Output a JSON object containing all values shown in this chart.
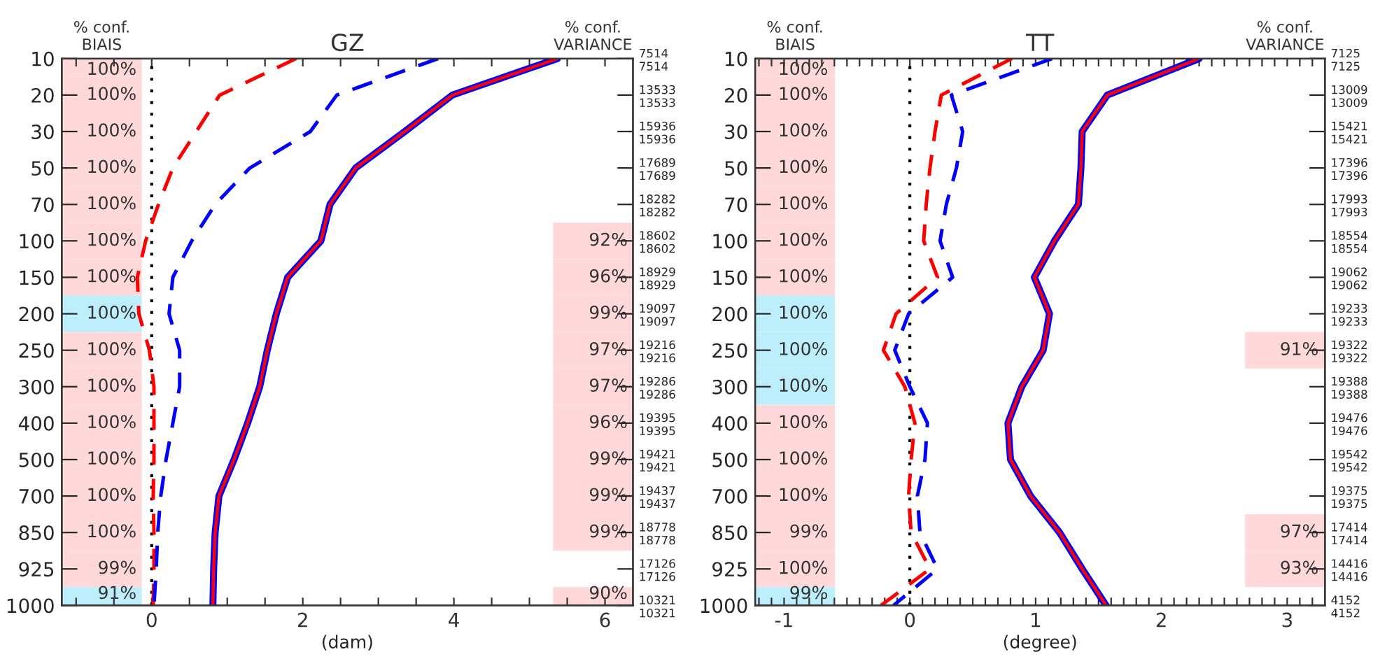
{
  "chart_data": [
    {
      "type": "line",
      "orientation": "horizontal",
      "title": "GZ",
      "xlabel": "(dam)",
      "categories": [
        "10",
        "20",
        "30",
        "50",
        "70",
        "100",
        "150",
        "200",
        "250",
        "300",
        "400",
        "500",
        "700",
        "850",
        "925",
        "1000"
      ],
      "y2_categories": [
        "7514\n7514",
        "13533\n13533",
        "15936\n15936",
        "17689\n17689",
        "18282\n18282",
        "18602\n18602",
        "18929\n18929",
        "19097\n19097",
        "19216\n19216",
        "19286\n19286",
        "19395\n19395",
        "19421\n19421",
        "19437\n19437",
        "18778\n18778",
        "17126\n17126",
        "10321\n10321"
      ],
      "series": [
        {
          "color": "#ff0000",
          "line_style": "dashed",
          "values": [
            1.91,
            0.9,
            0.59,
            0.28,
            0.09,
            -0.08,
            -0.19,
            -0.17,
            -0.03,
            0.03,
            0.03,
            0.03,
            0.02,
            0.03,
            0.03,
            0.02
          ]
        },
        {
          "color": "#0000ff",
          "line_style": "dashed",
          "values": [
            3.79,
            2.45,
            2.1,
            1.3,
            0.84,
            0.53,
            0.28,
            0.23,
            0.37,
            0.37,
            0.28,
            0.19,
            0.12,
            0.08,
            0.06,
            0.03
          ]
        },
        {
          "color": "#0000ff",
          "line_style": "solid",
          "values": [
            5.37,
            3.98,
            3.35,
            2.7,
            2.36,
            2.24,
            1.8,
            1.65,
            1.53,
            1.43,
            1.27,
            1.09,
            0.89,
            0.84,
            0.82,
            0.81
          ]
        },
        {
          "color": "#ff0000",
          "line_style": "solid",
          "values": [
            5.37,
            3.98,
            3.35,
            2.7,
            2.36,
            2.24,
            1.8,
            1.65,
            1.53,
            1.43,
            1.27,
            1.09,
            0.89,
            0.84,
            0.82,
            0.81
          ]
        }
      ],
      "xlim": [
        -1.19,
        6.37
      ],
      "xticks": [
        {
          "value": -1,
          "label": null
        },
        {
          "value": -0.5,
          "label": null
        },
        0,
        {
          "value": 0.5,
          "label": null
        },
        {
          "value": 1,
          "label": null
        },
        {
          "value": 1.5,
          "label": null
        },
        2,
        {
          "value": 2.5,
          "label": null
        },
        {
          "value": 3,
          "label": null
        },
        {
          "value": 3.5,
          "label": null
        },
        4,
        {
          "value": 4.5,
          "label": null
        },
        {
          "value": 5,
          "label": null
        },
        {
          "value": 5.5,
          "label": null
        },
        6
      ],
      "ref_lines": [
        {
          "axis": "x",
          "value": 0,
          "color": "#000000",
          "line_style": "dotted"
        }
      ],
      "bands": [
        {
          "axis": "y",
          "from": "10",
          "to": "10",
          "color": "#ffd9d9"
        },
        {
          "axis": "y",
          "from": "20",
          "to": "20",
          "color": "#ffd9d9"
        },
        {
          "axis": "y",
          "from": "30",
          "to": "30",
          "color": "#ffd9d9"
        },
        {
          "axis": "y",
          "from": "50",
          "to": "50",
          "color": "#ffd9d9"
        },
        {
          "axis": "y",
          "from": "70",
          "to": "70",
          "color": "#ffd9d9"
        },
        {
          "axis": "y",
          "from": "100",
          "to": "100",
          "color": "#ffd9d9"
        },
        {
          "axis": "y",
          "from": "150",
          "to": "150",
          "color": "#ffd9d9"
        },
        {
          "axis": "y",
          "from": "200",
          "to": "200",
          "color": "#bdeefc"
        },
        {
          "axis": "y",
          "from": "250",
          "to": "250",
          "color": "#ffd9d9"
        },
        {
          "axis": "y",
          "from": "300",
          "to": "300",
          "color": "#ffd9d9"
        },
        {
          "axis": "y",
          "from": "400",
          "to": "400",
          "color": "#ffd9d9"
        },
        {
          "axis": "y",
          "from": "500",
          "to": "500",
          "color": "#ffd9d9"
        },
        {
          "axis": "y",
          "from": "700",
          "to": "700",
          "color": "#ffd9d9"
        },
        {
          "axis": "y",
          "from": "850",
          "to": "850",
          "color": "#ffd9d9"
        },
        {
          "axis": "y",
          "from": "925",
          "to": "925",
          "color": "#ffd9d9"
        },
        {
          "axis": "y",
          "from": "1000",
          "to": "1000",
          "color": "#bdeefc"
        },
        {
          "axis": "y",
          "from": "100",
          "to": "100",
          "color": "#ffd9d9"
        },
        {
          "axis": "y",
          "from": "150",
          "to": "150",
          "color": "#ffd9d9"
        },
        {
          "axis": "y",
          "from": "200",
          "to": "200",
          "color": "#ffd9d9"
        },
        {
          "axis": "y",
          "from": "250",
          "to": "250",
          "color": "#ffd9d9"
        },
        {
          "axis": "y",
          "from": "300",
          "to": "300",
          "color": "#ffd9d9"
        },
        {
          "axis": "y",
          "from": "400",
          "to": "400",
          "color": "#ffd9d9"
        },
        {
          "axis": "y",
          "from": "500",
          "to": "500",
          "color": "#ffd9d9"
        },
        {
          "axis": "y",
          "from": "700",
          "to": "700",
          "color": "#ffd9d9"
        },
        {
          "axis": "y",
          "from": "850",
          "to": "850",
          "color": "#ffd9d9"
        },
        {
          "axis": "y",
          "from": "1000",
          "to": "1000",
          "color": "#ffd9d9"
        }
      ],
      "annotations": [
        "% conf.\nBIAIS",
        "% conf.\nVARIANCE",
        {
          "text": "100%",
          "x": -0.2,
          "y": "10"
        },
        {
          "text": "100%",
          "x": -0.2,
          "y": "20"
        },
        {
          "text": "100%",
          "x": -0.2,
          "y": "30"
        },
        {
          "text": "100%",
          "x": -0.2,
          "y": "50"
        },
        {
          "text": "100%",
          "x": -0.2,
          "y": "70"
        },
        {
          "text": "100%",
          "x": -0.2,
          "y": "100"
        },
        {
          "text": "100%",
          "x": -0.2,
          "y": "150"
        },
        {
          "text": "100%",
          "x": -0.2,
          "y": "200"
        },
        {
          "text": "100%",
          "x": -0.2,
          "y": "250"
        },
        {
          "text": "100%",
          "x": -0.2,
          "y": "300"
        },
        {
          "text": "100%",
          "x": -0.2,
          "y": "400"
        },
        {
          "text": "100%",
          "x": -0.2,
          "y": "500"
        },
        {
          "text": "100%",
          "x": -0.2,
          "y": "700"
        },
        {
          "text": "100%",
          "x": -0.2,
          "y": "850"
        },
        {
          "text": "99%",
          "x": -0.2,
          "y": "925"
        },
        {
          "text": "91%",
          "x": -0.2,
          "y": "1000"
        },
        {
          "text": "92%",
          "x": 6.3,
          "y": "100"
        },
        {
          "text": "96%",
          "x": 6.3,
          "y": "150"
        },
        {
          "text": "99%",
          "x": 6.3,
          "y": "200"
        },
        {
          "text": "97%",
          "x": 6.3,
          "y": "250"
        },
        {
          "text": "97%",
          "x": 6.3,
          "y": "300"
        },
        {
          "text": "96%",
          "x": 6.3,
          "y": "400"
        },
        {
          "text": "99%",
          "x": 6.3,
          "y": "500"
        },
        {
          "text": "99%",
          "x": 6.3,
          "y": "700"
        },
        {
          "text": "99%",
          "x": 6.3,
          "y": "850"
        },
        {
          "text": "90%",
          "x": 6.3,
          "y": "1000"
        }
      ]
    },
    {
      "type": "line",
      "orientation": "horizontal",
      "title": "TT",
      "xlabel": "(degree)",
      "categories": [
        "10",
        "20",
        "30",
        "50",
        "70",
        "100",
        "150",
        "200",
        "250",
        "300",
        "400",
        "500",
        "700",
        "850",
        "925",
        "1000"
      ],
      "y2_categories": [
        "7125\n7125",
        "13009\n13009",
        "15421\n15421",
        "17396\n17396",
        "17993\n17993",
        "18554\n18554",
        "19062\n19062",
        "19233\n19233",
        "19322\n19322",
        "19388\n19388",
        "19476\n19476",
        "19542\n19542",
        "19375\n19375",
        "17414\n17414",
        "14416\n14416",
        "4152\n4152"
      ],
      "series": [
        {
          "color": "#ff0000",
          "line_style": "dashed",
          "values": [
            0.81,
            0.25,
            0.2,
            0.16,
            0.13,
            0.11,
            0.22,
            -0.11,
            -0.21,
            -0.04,
            0.04,
            0.01,
            -0.01,
            0.01,
            0.16,
            -0.23
          ]
        },
        {
          "color": "#0000ff",
          "line_style": "dashed",
          "values": [
            1.13,
            0.33,
            0.42,
            0.37,
            0.29,
            0.24,
            0.34,
            -0.01,
            -0.12,
            0.0,
            0.14,
            0.12,
            0.06,
            0.08,
            0.22,
            -0.13
          ]
        },
        {
          "color": "#0000ff",
          "line_style": "solid",
          "values": [
            2.3,
            1.57,
            1.37,
            1.36,
            1.34,
            1.15,
            0.99,
            1.11,
            1.06,
            0.89,
            0.78,
            0.8,
            0.96,
            1.19,
            1.37,
            1.56
          ]
        },
        {
          "color": "#ff0000",
          "line_style": "solid",
          "values": [
            2.3,
            1.57,
            1.37,
            1.36,
            1.34,
            1.15,
            0.99,
            1.11,
            1.06,
            0.89,
            0.78,
            0.8,
            0.96,
            1.19,
            1.37,
            1.56
          ]
        }
      ],
      "xlim": [
        -1.23,
        3.3
      ],
      "xticks": [
        {
          "value": -1.2,
          "label": null
        },
        {
          "value": -1.1,
          "label": null
        },
        -1,
        {
          "value": -0.9,
          "label": null
        },
        {
          "value": -0.8,
          "label": null
        },
        {
          "value": -0.7,
          "label": null
        },
        {
          "value": -0.6,
          "label": null
        },
        {
          "value": -0.5,
          "label": null
        },
        {
          "value": -0.4,
          "label": null
        },
        {
          "value": -0.3,
          "label": null
        },
        {
          "value": -0.2,
          "label": null
        },
        {
          "value": -0.1,
          "label": null
        },
        0,
        {
          "value": 0.1,
          "label": null
        },
        {
          "value": 0.2,
          "label": null
        },
        {
          "value": 0.3,
          "label": null
        },
        {
          "value": 0.4,
          "label": null
        },
        {
          "value": 0.5,
          "label": null
        },
        {
          "value": 0.6,
          "label": null
        },
        {
          "value": 0.7,
          "label": null
        },
        {
          "value": 0.8,
          "label": null
        },
        {
          "value": 0.9,
          "label": null
        },
        1,
        {
          "value": 1.1,
          "label": null
        },
        {
          "value": 1.2,
          "label": null
        },
        {
          "value": 1.3,
          "label": null
        },
        {
          "value": 1.4,
          "label": null
        },
        {
          "value": 1.5,
          "label": null
        },
        {
          "value": 1.6,
          "label": null
        },
        {
          "value": 1.7,
          "label": null
        },
        {
          "value": 1.8,
          "label": null
        },
        {
          "value": 1.9,
          "label": null
        },
        2,
        {
          "value": 2.1,
          "label": null
        },
        {
          "value": 2.2,
          "label": null
        },
        {
          "value": 2.3,
          "label": null
        },
        {
          "value": 2.4,
          "label": null
        },
        {
          "value": 2.5,
          "label": null
        },
        {
          "value": 2.6,
          "label": null
        },
        {
          "value": 2.7,
          "label": null
        },
        {
          "value": 2.8,
          "label": null
        },
        {
          "value": 2.9,
          "label": null
        },
        3,
        {
          "value": 3.1,
          "label": null
        },
        {
          "value": 3.2,
          "label": null
        }
      ],
      "ref_lines": [
        {
          "axis": "x",
          "value": 0,
          "color": "#000000",
          "line_style": "dotted"
        }
      ],
      "bands": [
        {
          "axis": "y",
          "from": "10",
          "to": "10",
          "color": "#ffd9d9"
        },
        {
          "axis": "y",
          "from": "20",
          "to": "20",
          "color": "#ffd9d9"
        },
        {
          "axis": "y",
          "from": "30",
          "to": "30",
          "color": "#ffd9d9"
        },
        {
          "axis": "y",
          "from": "50",
          "to": "50",
          "color": "#ffd9d9"
        },
        {
          "axis": "y",
          "from": "70",
          "to": "70",
          "color": "#ffd9d9"
        },
        {
          "axis": "y",
          "from": "100",
          "to": "100",
          "color": "#ffd9d9"
        },
        {
          "axis": "y",
          "from": "150",
          "to": "150",
          "color": "#ffd9d9"
        },
        {
          "axis": "y",
          "from": "200",
          "to": "200",
          "color": "#bdeefc"
        },
        {
          "axis": "y",
          "from": "250",
          "to": "250",
          "color": "#bdeefc"
        },
        {
          "axis": "y",
          "from": "300",
          "to": "300",
          "color": "#bdeefc"
        },
        {
          "axis": "y",
          "from": "400",
          "to": "400",
          "color": "#ffd9d9"
        },
        {
          "axis": "y",
          "from": "500",
          "to": "500",
          "color": "#ffd9d9"
        },
        {
          "axis": "y",
          "from": "700",
          "to": "700",
          "color": "#ffd9d9"
        },
        {
          "axis": "y",
          "from": "850",
          "to": "850",
          "color": "#ffd9d9"
        },
        {
          "axis": "y",
          "from": "925",
          "to": "925",
          "color": "#ffd9d9"
        },
        {
          "axis": "y",
          "from": "1000",
          "to": "1000",
          "color": "#bdeefc"
        },
        {
          "axis": "y",
          "from": "250",
          "to": "250",
          "color": "#ffd9d9"
        },
        {
          "axis": "y",
          "from": "850",
          "to": "850",
          "color": "#ffd9d9"
        },
        {
          "axis": "y",
          "from": "925",
          "to": "925",
          "color": "#ffd9d9"
        }
      ],
      "annotations": [
        "% conf.\nBIAIS",
        "% conf.\nVARIANCE",
        {
          "text": "100%",
          "x": -0.65,
          "y": "10"
        },
        {
          "text": "100%",
          "x": -0.65,
          "y": "20"
        },
        {
          "text": "100%",
          "x": -0.65,
          "y": "30"
        },
        {
          "text": "100%",
          "x": -0.65,
          "y": "50"
        },
        {
          "text": "100%",
          "x": -0.65,
          "y": "70"
        },
        {
          "text": "100%",
          "x": -0.65,
          "y": "100"
        },
        {
          "text": "100%",
          "x": -0.65,
          "y": "150"
        },
        {
          "text": "100%",
          "x": -0.65,
          "y": "200"
        },
        {
          "text": "100%",
          "x": -0.65,
          "y": "250"
        },
        {
          "text": "100%",
          "x": -0.65,
          "y": "300"
        },
        {
          "text": "100%",
          "x": -0.65,
          "y": "400"
        },
        {
          "text": "100%",
          "x": -0.65,
          "y": "500"
        },
        {
          "text": "100%",
          "x": -0.65,
          "y": "700"
        },
        {
          "text": "99%",
          "x": -0.65,
          "y": "850"
        },
        {
          "text": "100%",
          "x": -0.65,
          "y": "925"
        },
        {
          "text": "99%",
          "x": -0.65,
          "y": "1000"
        },
        {
          "text": "91%",
          "x": 3.25,
          "y": "250"
        },
        {
          "text": "97%",
          "x": 3.25,
          "y": "850"
        },
        {
          "text": "93%",
          "x": 3.25,
          "y": "925"
        }
      ]
    }
  ]
}
